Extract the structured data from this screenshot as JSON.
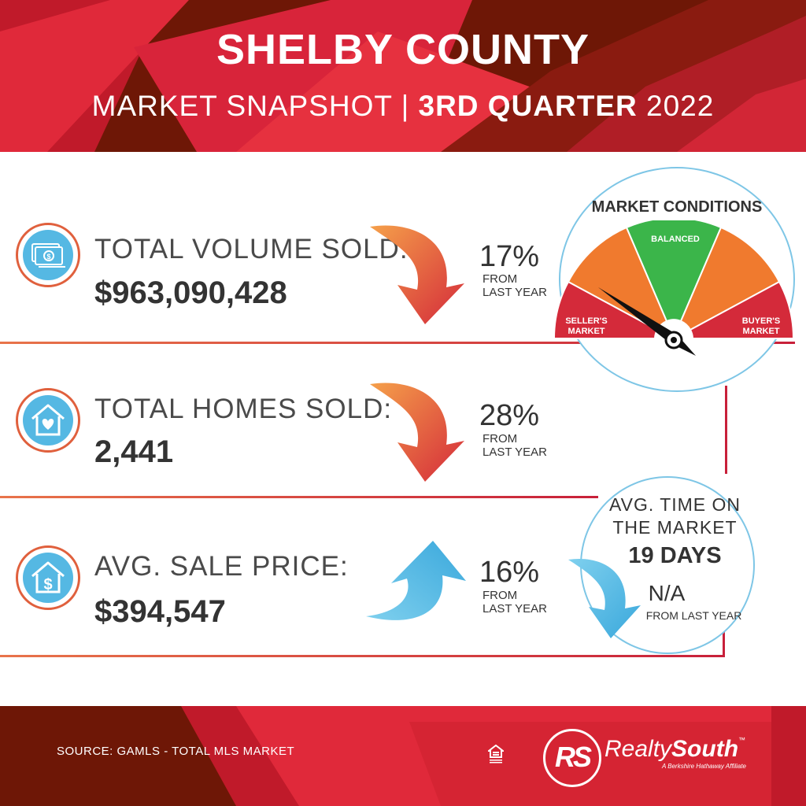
{
  "header": {
    "title": "SHELBY COUNTY",
    "subtitle_prefix": "MARKET SNAPSHOT | ",
    "subtitle_bold": "3RD QUARTER",
    "subtitle_year": " 2022"
  },
  "metrics": [
    {
      "label": "TOTAL VOLUME SOLD:",
      "value": "$963,090,428",
      "change": "17%",
      "change_note_1": "FROM",
      "change_note_2": "LAST YEAR",
      "direction": "down",
      "icon": "money-icon"
    },
    {
      "label": "TOTAL HOMES SOLD:",
      "value": "2,441",
      "change": "28%",
      "change_note_1": "FROM",
      "change_note_2": "LAST YEAR",
      "direction": "down",
      "icon": "house-heart-icon"
    },
    {
      "label": "AVG. SALE PRICE:",
      "value": "$394,547",
      "change": "16%",
      "change_note_1": "FROM",
      "change_note_2": "LAST YEAR",
      "direction": "up",
      "icon": "house-dollar-icon"
    }
  ],
  "market_conditions": {
    "title": "MARKET CONDITIONS",
    "balanced": "BALANCED",
    "seller_1": "SELLER'S",
    "seller_2": "MARKET",
    "buyer_1": "BUYER'S",
    "buyer_2": "MARKET",
    "indicator": "seller's market"
  },
  "time_on_market": {
    "line1": "AVG. TIME ON",
    "line2": "THE MARKET",
    "value": "19 DAYS",
    "change": "N/A",
    "note": "FROM LAST YEAR"
  },
  "footer": {
    "source": "SOURCE: GAMLS - TOTAL MLS MARKET",
    "brand_light": "Realty",
    "brand_bold": "South",
    "tm": "™",
    "tagline": "A Berkshire Hathaway Affiliate",
    "monogram": "RS",
    "equal_housing": "equal-housing-icon"
  },
  "colors": {
    "dark_red": "#6e1706",
    "bright_red": "#d42a3a",
    "orange": "#f07a2e",
    "green": "#3bb54a",
    "blue": "#55b8e3"
  }
}
